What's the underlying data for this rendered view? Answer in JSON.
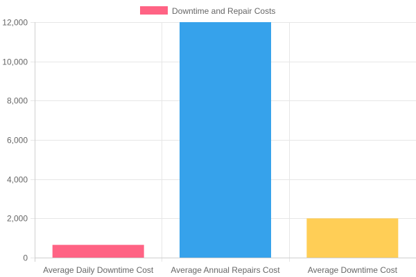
{
  "chart_data": {
    "type": "bar",
    "categories": [
      "Average Daily Downtime Cost",
      "Average Annual Repairs Cost",
      "Average Downtime Cost"
    ],
    "series": [
      {
        "name": "Downtime and Repair Costs",
        "values": [
          650,
          12000,
          2000
        ],
        "colors": [
          "#ff6384",
          "#36a2eb",
          "#ffce56"
        ]
      }
    ],
    "ylim": [
      0,
      12000
    ],
    "yticks": [
      "0",
      "2,000",
      "4,000",
      "6,000",
      "8,000",
      "10,000",
      "12,000"
    ],
    "ytick_values": [
      0,
      2000,
      4000,
      6000,
      8000,
      10000,
      12000
    ],
    "grid": true,
    "legend": "top-center",
    "legend_color": "#ff6384"
  }
}
